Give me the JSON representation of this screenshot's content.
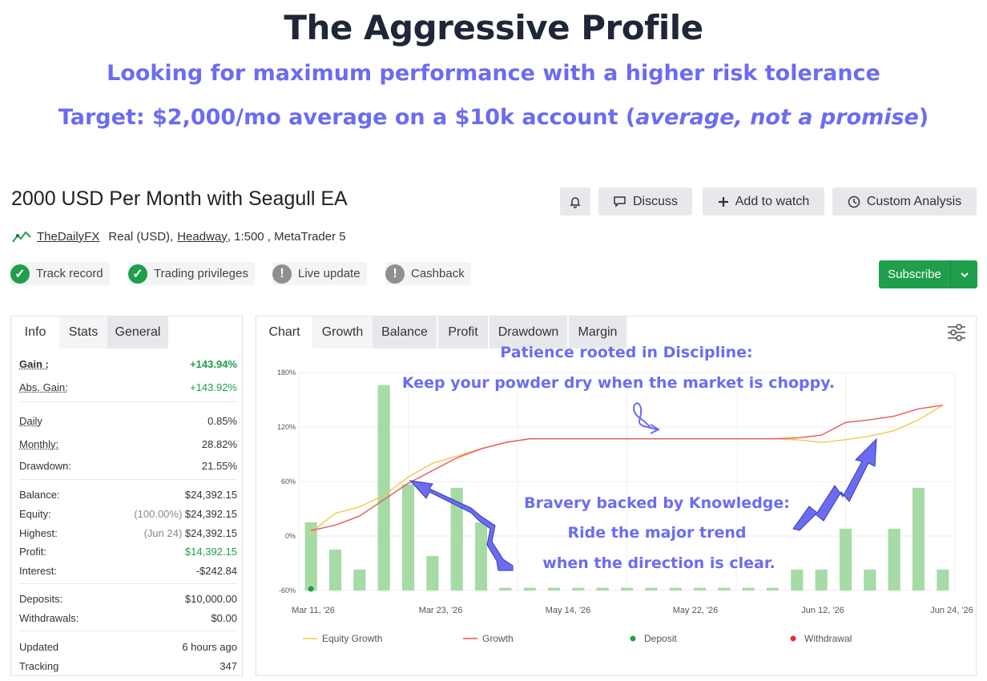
{
  "hero": {
    "title": "The Aggressive Profile",
    "subtitle": "Looking for maximum performance with a higher risk tolerance",
    "target_prefix": "Target: $2,000/mo average on a $10k account (",
    "target_italic": "average, not a promise",
    "target_suffix": ")"
  },
  "system": {
    "title": "2000 USD Per Month with Seagull EA",
    "author": "TheDailyFX",
    "account": "Real (USD),",
    "broker": "Headway",
    "details": ", 1:500 , MetaTrader 5"
  },
  "buttons": {
    "bell": "bell-icon",
    "discuss": "Discuss",
    "add_watch": "Add to watch",
    "custom_analysis": "Custom Analysis",
    "subscribe": "Subscribe"
  },
  "badges": [
    {
      "label": "Track record",
      "state": "ok"
    },
    {
      "label": "Trading privileges",
      "state": "ok"
    },
    {
      "label": "Live update",
      "state": "no"
    },
    {
      "label": "Cashback",
      "state": "no"
    }
  ],
  "left_tabs": [
    "Info",
    "Stats",
    "General"
  ],
  "stats": {
    "gain": {
      "label": "Gain :",
      "value": "+143.94%"
    },
    "abs_gain": {
      "label": "Abs. Gain:",
      "value": "+143.92%"
    },
    "daily": {
      "label": "Daily",
      "value": "0.85%"
    },
    "monthly": {
      "label": "Monthly:",
      "value": "28.82%"
    },
    "drawdown": {
      "label": "Drawdown:",
      "value": "21.55%"
    },
    "balance": {
      "label": "Balance:",
      "value": "$24,392.15"
    },
    "equity": {
      "label": "Equity:",
      "note": "(100.00%)",
      "value": "$24,392.15"
    },
    "highest": {
      "label": "Highest:",
      "note": "(Jun 24)",
      "value": "$24,392.15"
    },
    "profit": {
      "label": "Profit:",
      "value": "$14,392.15"
    },
    "interest": {
      "label": "Interest:",
      "value": "-$242.84"
    },
    "deposits": {
      "label": "Deposits:",
      "value": "$10,000.00"
    },
    "withdrawals": {
      "label": "Withdrawals:",
      "value": "$0.00"
    },
    "updated": {
      "label": "Updated",
      "value": "6 hours ago"
    },
    "tracking": {
      "label": "Tracking",
      "value": "347"
    }
  },
  "chart_tabs": [
    "Chart",
    "Growth",
    "Balance",
    "Profit",
    "Drawdown",
    "Margin"
  ],
  "annotations": {
    "patience_title": "Patience rooted in Discipline:",
    "patience_body": "Keep your powder dry when the market is choppy.",
    "bravery_title": "Bravery backed by Knowledge:",
    "bravery_line1": "Ride the major trend",
    "bravery_line2": "when the direction is clear."
  },
  "colors": {
    "accent": "#6b6cf2",
    "green": "#1f9e4b",
    "equity": "#f2c94c",
    "growth": "#eb5757",
    "bars": "#a6dba6",
    "withdrawal": "#e03030"
  },
  "chart_data": {
    "type": "line",
    "yticks": [
      "180%",
      "120%",
      "60%",
      "0%",
      "-60%"
    ],
    "ylim": [
      -60,
      180
    ],
    "xticks": [
      "Mar 11, '26",
      "Mar 23, '26",
      "May 14, '26",
      "May 22, '26",
      "Jun 12, '26",
      "Jun 24, '26"
    ],
    "legend": [
      "Equity Growth",
      "Growth",
      "Deposit",
      "Withdrawal"
    ],
    "bars": [
      15,
      -15,
      -37,
      166,
      57,
      -22,
      53,
      15,
      -57,
      -57,
      -57,
      -57,
      -57,
      -57,
      -57,
      -57,
      -57,
      -57,
      -57,
      -57,
      -37,
      -37,
      8,
      -37,
      8,
      53,
      -37
    ],
    "growth": [
      6,
      12,
      22,
      40,
      58,
      72,
      86,
      96,
      103,
      107,
      107,
      107,
      107,
      107,
      107,
      107,
      107,
      107,
      107,
      107,
      108,
      111,
      125,
      128,
      132,
      140,
      144
    ],
    "equity": [
      4,
      25,
      32,
      45,
      65,
      80,
      88,
      96,
      103,
      107,
      107,
      107,
      107,
      107,
      107,
      107,
      107,
      107,
      107,
      107,
      106,
      103,
      106,
      110,
      116,
      128,
      144
    ],
    "deposit_index": 0
  }
}
